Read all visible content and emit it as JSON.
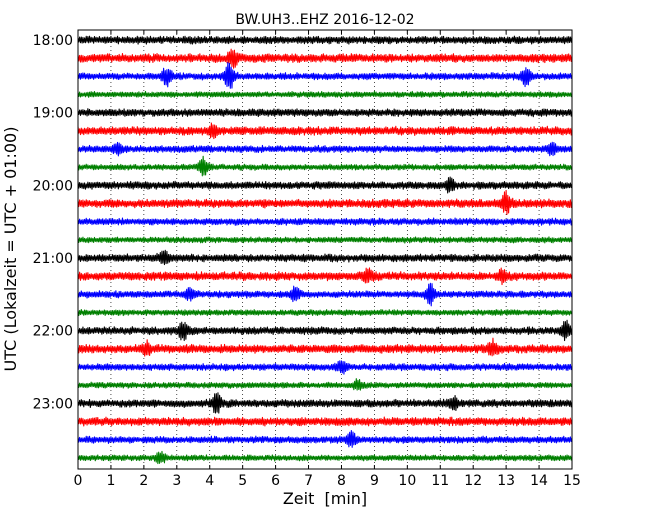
{
  "chart_data": {
    "type": "line",
    "title": "BW.UH3..EHZ 2016-12-02",
    "xlabel": "Zeit  [min]",
    "ylabel": "UTC (Lokalzeit = UTC + 01:00)",
    "xlim": [
      0,
      15
    ],
    "x_ticks": [
      "0",
      "1",
      "2",
      "3",
      "4",
      "5",
      "6",
      "7",
      "8",
      "9",
      "10",
      "11",
      "12",
      "13",
      "14",
      "15"
    ],
    "y_ticks": [
      "18:00",
      "19:00",
      "20:00",
      "21:00",
      "22:00",
      "23:00"
    ],
    "y_tick_offsets_min": [
      0,
      60,
      120,
      180,
      240,
      300
    ],
    "x_grid": "dotted",
    "trace_length_min": 15,
    "trace_start_times": [
      "18:00",
      "18:15",
      "18:30",
      "18:45",
      "19:00",
      "19:15",
      "19:30",
      "19:45",
      "20:00",
      "20:15",
      "20:30",
      "20:45",
      "21:00",
      "21:15",
      "21:30",
      "21:45",
      "22:00",
      "22:15",
      "22:30",
      "22:45",
      "23:00",
      "23:15",
      "23:30",
      "23:45"
    ],
    "trace_colors": [
      "#000000",
      "#ff0000",
      "#0000ff",
      "#008000"
    ],
    "events": [
      {
        "trace": 1,
        "t": 4.7,
        "amp": 1.3
      },
      {
        "trace": 2,
        "t": 2.7,
        "amp": 1.4
      },
      {
        "trace": 2,
        "t": 4.6,
        "amp": 2.2
      },
      {
        "trace": 2,
        "t": 13.6,
        "amp": 1.3
      },
      {
        "trace": 5,
        "t": 4.1,
        "amp": 1.0
      },
      {
        "trace": 6,
        "t": 1.2,
        "amp": 0.9
      },
      {
        "trace": 6,
        "t": 14.4,
        "amp": 1.0
      },
      {
        "trace": 7,
        "t": 3.8,
        "amp": 1.4
      },
      {
        "trace": 8,
        "t": 11.3,
        "amp": 1.0
      },
      {
        "trace": 9,
        "t": 13.0,
        "amp": 1.6
      },
      {
        "trace": 12,
        "t": 2.6,
        "amp": 0.9
      },
      {
        "trace": 13,
        "t": 8.8,
        "amp": 0.8
      },
      {
        "trace": 13,
        "t": 12.9,
        "amp": 0.9
      },
      {
        "trace": 14,
        "t": 3.4,
        "amp": 0.8
      },
      {
        "trace": 14,
        "t": 6.6,
        "amp": 1.0
      },
      {
        "trace": 14,
        "t": 10.7,
        "amp": 1.5
      },
      {
        "trace": 16,
        "t": 3.2,
        "amp": 1.4
      },
      {
        "trace": 16,
        "t": 14.8,
        "amp": 1.3
      },
      {
        "trace": 17,
        "t": 2.1,
        "amp": 1.0
      },
      {
        "trace": 17,
        "t": 12.6,
        "amp": 1.2
      },
      {
        "trace": 18,
        "t": 8.0,
        "amp": 0.9
      },
      {
        "trace": 19,
        "t": 8.5,
        "amp": 0.8
      },
      {
        "trace": 20,
        "t": 4.2,
        "amp": 1.6
      },
      {
        "trace": 20,
        "t": 11.4,
        "amp": 1.0
      },
      {
        "trace": 22,
        "t": 8.3,
        "amp": 1.0
      },
      {
        "trace": 23,
        "t": 2.5,
        "amp": 0.8
      }
    ]
  }
}
